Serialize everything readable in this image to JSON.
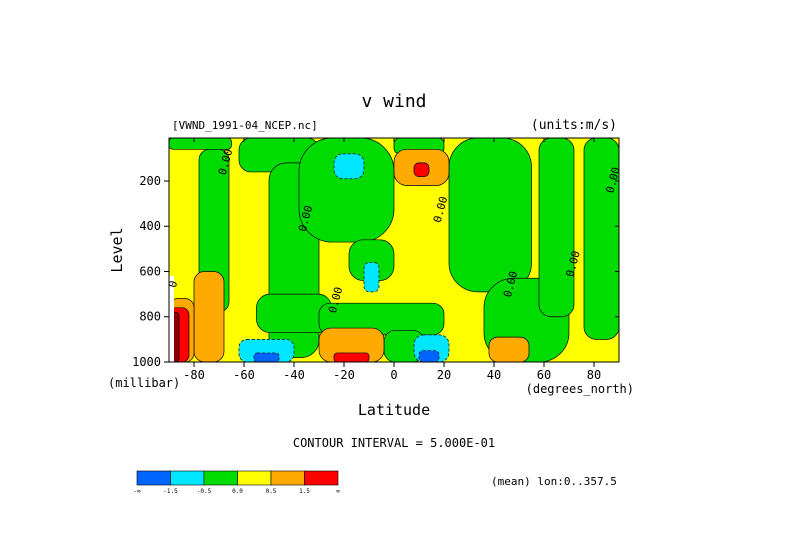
{
  "chart_data": {
    "type": "heatmap",
    "title": "v wind",
    "source_label": "[VWND_1991-04_NCEP.nc]",
    "units_label": "(units:m/s)",
    "xlabel": "Latitude",
    "x_unit_label": "(degrees_north)",
    "ylabel": "Level",
    "y_unit_label": "(millibar)",
    "xlim": [
      -90,
      90
    ],
    "ylim": [
      1000,
      10
    ],
    "x_ticks": [
      "-80",
      "-60",
      "-40",
      "-20",
      "0",
      "20",
      "40",
      "60",
      "80"
    ],
    "x_tick_values": [
      -80,
      -60,
      -40,
      -20,
      0,
      20,
      40,
      60,
      80
    ],
    "y_ticks": [
      "200",
      "400",
      "600",
      "800",
      "1000"
    ],
    "y_tick_values": [
      200,
      400,
      600,
      800,
      1000
    ],
    "contour_interval_label": "CONTOUR INTERVAL = 5.000E-01",
    "mean_label": "(mean) lon:0..357.5",
    "contour_labels": [
      {
        "text": "0.00",
        "lat": -66,
        "level": 120
      },
      {
        "text": "0.00",
        "lat": -34,
        "level": 370
      },
      {
        "text": "0.00",
        "lat": -22,
        "level": 730
      },
      {
        "text": "0.00",
        "lat": 20,
        "level": 330
      },
      {
        "text": "0.00",
        "lat": 48,
        "level": 660
      },
      {
        "text": "0.00",
        "lat": 73,
        "level": 570
      },
      {
        "text": "0.00",
        "lat": 89,
        "level": 200
      },
      {
        "text": "0",
        "lat": -87,
        "level": 660
      }
    ],
    "colorbar": {
      "colors": [
        "#0064ff",
        "#00e6ff",
        "#00dc00",
        "#ffff00",
        "#ffaa00",
        "#ff0000"
      ],
      "labels": [
        "-∞",
        "-1.5",
        "-0.5",
        "0.0",
        "0.5",
        "1.5",
        "∞"
      ]
    },
    "regions": [
      {
        "level": 3,
        "lat": [
          -90,
          90
        ],
        "p": [
          10,
          1000
        ],
        "note": "yellow background (0 to 0.5)"
      },
      {
        "level": 2,
        "lat": [
          -90,
          -65
        ],
        "p": [
          10,
          60
        ]
      },
      {
        "level": 2,
        "lat": [
          -78,
          -66
        ],
        "p": [
          60,
          780
        ]
      },
      {
        "level": 2,
        "lat": [
          -62,
          -30
        ],
        "p": [
          10,
          160
        ]
      },
      {
        "level": 2,
        "lat": [
          -50,
          -30
        ],
        "p": [
          120,
          980
        ]
      },
      {
        "level": 2,
        "lat": [
          -55,
          -25
        ],
        "p": [
          700,
          870
        ]
      },
      {
        "level": 2,
        "lat": [
          -38,
          0
        ],
        "p": [
          10,
          470
        ]
      },
      {
        "level": 2,
        "lat": [
          -18,
          0
        ],
        "p": [
          460,
          640
        ]
      },
      {
        "level": 2,
        "lat": [
          -30,
          20
        ],
        "p": [
          740,
          880
        ]
      },
      {
        "level": 2,
        "lat": [
          0,
          20
        ],
        "p": [
          10,
          80
        ]
      },
      {
        "level": 2,
        "lat": [
          22,
          55
        ],
        "p": [
          10,
          690
        ]
      },
      {
        "level": 2,
        "lat": [
          36,
          70
        ],
        "p": [
          630,
          1000
        ]
      },
      {
        "level": 2,
        "lat": [
          58,
          72
        ],
        "p": [
          10,
          800
        ]
      },
      {
        "level": 2,
        "lat": [
          76,
          90
        ],
        "p": [
          10,
          900
        ]
      },
      {
        "level": 2,
        "lat": [
          -4,
          12
        ],
        "p": [
          860,
          1000
        ]
      },
      {
        "level": 1,
        "lat": [
          -24,
          -12
        ],
        "p": [
          80,
          190
        ]
      },
      {
        "level": 1,
        "lat": [
          -12,
          -6
        ],
        "p": [
          560,
          690
        ]
      },
      {
        "level": 1,
        "lat": [
          -62,
          -40
        ],
        "p": [
          900,
          1000
        ]
      },
      {
        "level": 1,
        "lat": [
          8,
          22
        ],
        "p": [
          880,
          1000
        ]
      },
      {
        "level": 0,
        "lat": [
          -56,
          -46
        ],
        "p": [
          960,
          1000
        ]
      },
      {
        "level": 0,
        "lat": [
          10,
          18
        ],
        "p": [
          950,
          1000
        ]
      },
      {
        "level": 4,
        "lat": [
          0,
          22
        ],
        "p": [
          60,
          220
        ]
      },
      {
        "level": 4,
        "lat": [
          -80,
          -68
        ],
        "p": [
          600,
          1000
        ]
      },
      {
        "level": 4,
        "lat": [
          -30,
          -4
        ],
        "p": [
          850,
          1000
        ]
      },
      {
        "level": 4,
        "lat": [
          38,
          54
        ],
        "p": [
          890,
          1000
        ]
      },
      {
        "level": 4,
        "lat": [
          -90,
          -80
        ],
        "p": [
          720,
          1000
        ]
      },
      {
        "level": 5,
        "lat": [
          8,
          14
        ],
        "p": [
          120,
          180
        ]
      },
      {
        "level": 5,
        "lat": [
          -24,
          -10
        ],
        "p": [
          960,
          1000
        ]
      },
      {
        "level": 5,
        "lat": [
          -90,
          -82
        ],
        "p": [
          760,
          1000
        ]
      },
      {
        "level": 6,
        "lat": [
          -90,
          -86
        ],
        "p": [
          780,
          1000
        ],
        "note": "dark red"
      },
      {
        "level": 7,
        "lat": [
          -90,
          -88
        ],
        "p": [
          620,
          1000
        ],
        "note": "white, missing data"
      }
    ]
  }
}
